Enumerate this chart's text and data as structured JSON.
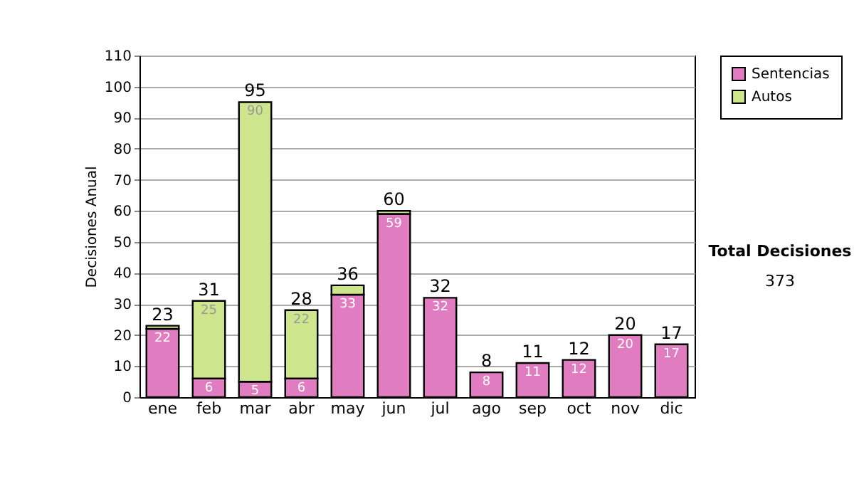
{
  "chart_data": {
    "type": "bar",
    "stacked": true,
    "ylabel": "Decisiones Anual",
    "categories": [
      "ene",
      "feb",
      "mar",
      "abr",
      "may",
      "jun",
      "jul",
      "ago",
      "sep",
      "oct",
      "nov",
      "dic"
    ],
    "series": [
      {
        "name": "Sentencias",
        "color": "#e07cc0",
        "values": [
          22,
          6,
          5,
          6,
          33,
          59,
          32,
          8,
          11,
          12,
          20,
          17
        ],
        "value_labels": [
          "22",
          "6",
          "5",
          "6",
          "33",
          "59",
          "32",
          "8",
          "11",
          "12",
          "20",
          "17"
        ]
      },
      {
        "name": "Autos",
        "color": "#cde68e",
        "values": [
          1,
          25,
          90,
          22,
          3,
          1,
          null,
          null,
          null,
          null,
          null,
          null
        ],
        "value_labels": [
          null,
          "25",
          "90",
          "22",
          null,
          null,
          null,
          null,
          null,
          null,
          null,
          null
        ]
      }
    ],
    "totals": [
      "23",
      "31",
      "95",
      "28",
      "36",
      "60",
      "32",
      "8",
      "11",
      "12",
      "20",
      "17"
    ],
    "ylim": [
      0,
      110
    ],
    "yticks": [
      0,
      10,
      20,
      30,
      40,
      50,
      60,
      70,
      80,
      90,
      100,
      110
    ],
    "grid": "y",
    "legend": "right",
    "annotations": [
      "Total Decisiones",
      "373"
    ]
  }
}
